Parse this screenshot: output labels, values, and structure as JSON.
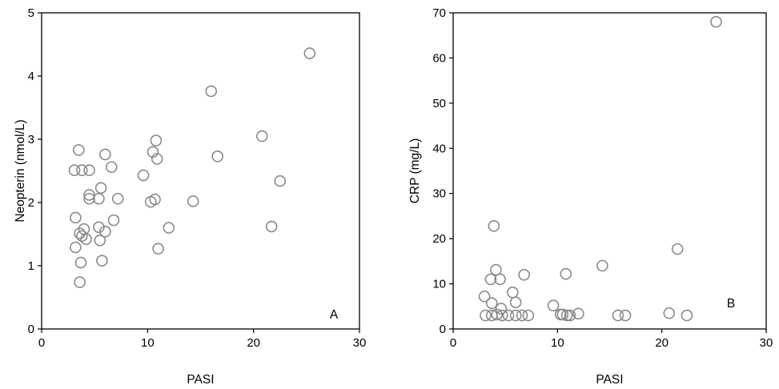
{
  "chart_data": [
    {
      "type": "scatter",
      "panel_label": "A",
      "xlabel": "PASI",
      "ylabel": "Neopterin (nmol/L)",
      "xlim": [
        0,
        30
      ],
      "ylim": [
        0,
        5
      ],
      "xticks": [
        "0",
        "10",
        "20",
        "30"
      ],
      "yticks": [
        "0",
        "1",
        "2",
        "3",
        "4",
        "5"
      ],
      "grid": false,
      "points": [
        {
          "x": 3.1,
          "y": 2.51
        },
        {
          "x": 3.2,
          "y": 1.76
        },
        {
          "x": 3.2,
          "y": 1.29
        },
        {
          "x": 3.5,
          "y": 2.83
        },
        {
          "x": 3.6,
          "y": 1.51
        },
        {
          "x": 3.6,
          "y": 0.74
        },
        {
          "x": 3.7,
          "y": 1.05
        },
        {
          "x": 3.8,
          "y": 1.47
        },
        {
          "x": 3.8,
          "y": 2.51
        },
        {
          "x": 4.0,
          "y": 1.58
        },
        {
          "x": 4.2,
          "y": 1.42
        },
        {
          "x": 4.5,
          "y": 2.51
        },
        {
          "x": 4.5,
          "y": 2.12
        },
        {
          "x": 4.5,
          "y": 2.06
        },
        {
          "x": 5.4,
          "y": 2.06
        },
        {
          "x": 5.4,
          "y": 1.61
        },
        {
          "x": 5.5,
          "y": 1.4
        },
        {
          "x": 5.6,
          "y": 2.23
        },
        {
          "x": 5.7,
          "y": 1.08
        },
        {
          "x": 6.0,
          "y": 2.76
        },
        {
          "x": 6.0,
          "y": 1.54
        },
        {
          "x": 6.6,
          "y": 2.56
        },
        {
          "x": 6.8,
          "y": 1.72
        },
        {
          "x": 7.2,
          "y": 2.06
        },
        {
          "x": 9.6,
          "y": 2.43
        },
        {
          "x": 10.3,
          "y": 2.01
        },
        {
          "x": 10.5,
          "y": 2.8
        },
        {
          "x": 10.7,
          "y": 2.05
        },
        {
          "x": 10.8,
          "y": 2.98
        },
        {
          "x": 10.9,
          "y": 2.69
        },
        {
          "x": 11.0,
          "y": 1.27
        },
        {
          "x": 12.0,
          "y": 1.6
        },
        {
          "x": 14.3,
          "y": 2.02
        },
        {
          "x": 16.0,
          "y": 3.76
        },
        {
          "x": 16.6,
          "y": 2.73
        },
        {
          "x": 20.8,
          "y": 3.05
        },
        {
          "x": 21.7,
          "y": 1.62
        },
        {
          "x": 22.5,
          "y": 2.34
        },
        {
          "x": 25.3,
          "y": 4.36
        }
      ]
    },
    {
      "type": "scatter",
      "panel_label": "B",
      "xlabel": "PASI",
      "ylabel": "CRP (mg/L)",
      "xlim": [
        0,
        30
      ],
      "ylim": [
        0,
        70
      ],
      "xticks": [
        "0",
        "10",
        "20",
        "30"
      ],
      "yticks": [
        "0",
        "10",
        "20",
        "30",
        "40",
        "50",
        "60",
        "70"
      ],
      "grid": false,
      "points": [
        {
          "x": 3.0,
          "y": 7.2
        },
        {
          "x": 3.1,
          "y": 3.0
        },
        {
          "x": 3.6,
          "y": 11.0
        },
        {
          "x": 3.7,
          "y": 5.7
        },
        {
          "x": 3.7,
          "y": 3.0
        },
        {
          "x": 3.9,
          "y": 22.8
        },
        {
          "x": 4.1,
          "y": 13.1
        },
        {
          "x": 4.2,
          "y": 3.2
        },
        {
          "x": 4.5,
          "y": 11.0
        },
        {
          "x": 4.6,
          "y": 4.5
        },
        {
          "x": 4.7,
          "y": 3.0
        },
        {
          "x": 5.3,
          "y": 3.0
        },
        {
          "x": 5.7,
          "y": 8.1
        },
        {
          "x": 6.0,
          "y": 5.9
        },
        {
          "x": 6.0,
          "y": 3.0
        },
        {
          "x": 6.6,
          "y": 3.0
        },
        {
          "x": 6.8,
          "y": 12.0
        },
        {
          "x": 7.2,
          "y": 3.0
        },
        {
          "x": 9.6,
          "y": 5.2
        },
        {
          "x": 10.3,
          "y": 3.2
        },
        {
          "x": 10.5,
          "y": 3.2
        },
        {
          "x": 10.8,
          "y": 12.2
        },
        {
          "x": 10.9,
          "y": 3.0
        },
        {
          "x": 11.2,
          "y": 3.0
        },
        {
          "x": 12.0,
          "y": 3.4
        },
        {
          "x": 14.3,
          "y": 14.0
        },
        {
          "x": 15.8,
          "y": 3.0
        },
        {
          "x": 16.5,
          "y": 3.0
        },
        {
          "x": 20.7,
          "y": 3.5
        },
        {
          "x": 21.5,
          "y": 17.7
        },
        {
          "x": 22.4,
          "y": 3.0
        },
        {
          "x": 25.2,
          "y": 68.0
        }
      ]
    }
  ]
}
